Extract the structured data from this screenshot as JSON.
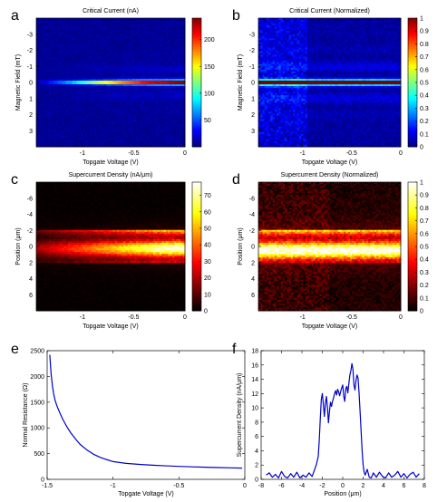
{
  "chart_data": [
    {
      "panel": "a",
      "type": "heatmap",
      "title": "Critical Current (nA)",
      "xlabel": "Topgate Voltage (V)",
      "ylabel": "Magnetic Field (mT)",
      "xlim": [
        -1.45,
        0
      ],
      "ylim": [
        -4,
        4
      ],
      "y_reversed": true,
      "xticks": [
        -1,
        -0.5,
        0
      ],
      "xticklabels": [
        "-1",
        "-0.5",
        "0"
      ],
      "yticks": [
        -3,
        -2,
        -1,
        0,
        1,
        2,
        3
      ],
      "yticklabels": [
        "-3",
        "-2",
        "-1",
        "0",
        "1",
        "2",
        "3"
      ],
      "colormap": "jet",
      "clim": [
        0,
        240
      ],
      "colorbar_ticks": [
        50,
        100,
        150,
        200
      ],
      "colorbar_ticklabels": [
        "50",
        "100",
        "150",
        "200"
      ],
      "peak_curve": {
        "x": [
          -1.45,
          -1.3,
          -1.1,
          -0.9,
          -0.7,
          -0.5,
          -0.3,
          0
        ],
        "y": [
          10,
          30,
          70,
          120,
          160,
          195,
          220,
          240
        ]
      }
    },
    {
      "panel": "b",
      "type": "heatmap",
      "title": "Critical Current (Normalized)",
      "xlabel": "Topgate Voltage (V)",
      "ylabel": "Magnetic Field (mT)",
      "xlim": [
        -1.45,
        0
      ],
      "ylim": [
        -4,
        4
      ],
      "y_reversed": true,
      "xticks": [
        -1,
        -0.5,
        0
      ],
      "xticklabels": [
        "-1",
        "-0.5",
        "0"
      ],
      "yticks": [
        -3,
        -2,
        -1,
        0,
        1,
        2,
        3
      ],
      "yticklabels": [
        "-3",
        "-2",
        "-1",
        "0",
        "1",
        "2",
        "3"
      ],
      "colormap": "jet",
      "clim": [
        0,
        1
      ],
      "colorbar_ticks": [
        0,
        0.1,
        0.2,
        0.3,
        0.4,
        0.5,
        0.6,
        0.7,
        0.8,
        0.9,
        1
      ],
      "colorbar_ticklabels": [
        "0",
        "0.1",
        "0.2",
        "0.3",
        "0.4",
        "0.5",
        "0.6",
        "0.7",
        "0.8",
        "0.9",
        "1"
      ]
    },
    {
      "panel": "c",
      "type": "heatmap",
      "title": "Supercurrent Density (nA/μm)",
      "xlabel": "Topgate Voltage (V)",
      "ylabel": "Position (μm)",
      "xlim": [
        -1.45,
        0
      ],
      "ylim": [
        -8,
        8
      ],
      "y_reversed": true,
      "xticks": [
        -1,
        -0.5,
        0
      ],
      "xticklabels": [
        "-1",
        "-0.5",
        "0"
      ],
      "yticks": [
        -6,
        -4,
        -2,
        0,
        2,
        4,
        6
      ],
      "yticklabels": [
        "-6",
        "-4",
        "-2",
        "0",
        "2",
        "4",
        "6"
      ],
      "colormap": "hot",
      "clim": [
        0,
        78
      ],
      "colorbar_ticks": [
        0,
        10,
        20,
        30,
        40,
        50,
        60,
        70
      ],
      "colorbar_ticklabels": [
        "0",
        "10",
        "20",
        "30",
        "40",
        "50",
        "60",
        "70"
      ],
      "band": [
        -2,
        2
      ]
    },
    {
      "panel": "d",
      "type": "heatmap",
      "title": "Supercurrent Density (Normalized)",
      "xlabel": "Topgate Voltage (V)",
      "ylabel": "Position (μm)",
      "xlim": [
        -1.45,
        0
      ],
      "ylim": [
        -8,
        8
      ],
      "y_reversed": true,
      "xticks": [
        -1,
        -0.5,
        0
      ],
      "xticklabels": [
        "-1",
        "-0.5",
        "0"
      ],
      "yticks": [
        -6,
        -4,
        -2,
        0,
        2,
        4,
        6
      ],
      "yticklabels": [
        "-6",
        "-4",
        "-2",
        "0",
        "2",
        "4",
        "6"
      ],
      "colormap": "hot",
      "clim": [
        0,
        1
      ],
      "colorbar_ticks": [
        0,
        0.1,
        0.2,
        0.3,
        0.4,
        0.5,
        0.6,
        0.7,
        0.8,
        0.9,
        1
      ],
      "colorbar_ticklabels": [
        "0",
        "0.1",
        "0.2",
        "0.3",
        "0.4",
        "0.5",
        "0.6",
        "0.7",
        "0.8",
        "0.9",
        "1"
      ],
      "band": [
        -2,
        2
      ]
    },
    {
      "panel": "e",
      "type": "line",
      "title": "",
      "xlabel": "Topgate Voltage (V)",
      "ylabel": "Normal Resistance (Ω)",
      "xlim": [
        -1.5,
        0
      ],
      "ylim": [
        0,
        2500
      ],
      "xticks": [
        -1.5,
        -1,
        -0.5,
        0
      ],
      "xticklabels": [
        "-1.5",
        "-1",
        "-0.5",
        "0"
      ],
      "yticks": [
        0,
        500,
        1000,
        1500,
        2000,
        2500
      ],
      "yticklabels": [
        "0",
        "500",
        "1000",
        "1500",
        "2000",
        "2500"
      ],
      "color": "#0000cc",
      "series": [
        {
          "x": [
            -1.48,
            -1.47,
            -1.46,
            -1.45,
            -1.44,
            -1.43,
            -1.42,
            -1.4,
            -1.38,
            -1.35,
            -1.32,
            -1.28,
            -1.25,
            -1.2,
            -1.15,
            -1.1,
            -1.05,
            -1.0,
            -0.9,
            -0.8,
            -0.7,
            -0.6,
            -0.5,
            -0.4,
            -0.3,
            -0.2,
            -0.1,
            -0.02
          ],
          "y": [
            2420,
            2050,
            1820,
            1650,
            1540,
            1460,
            1390,
            1270,
            1160,
            1020,
            900,
            770,
            680,
            575,
            490,
            430,
            385,
            345,
            310,
            290,
            275,
            263,
            252,
            243,
            236,
            229,
            223,
            218
          ]
        }
      ]
    },
    {
      "panel": "f",
      "type": "line",
      "title": "",
      "xlabel": "Position (μm)",
      "ylabel": "Supercurrent Density (nA/μm)",
      "xlim": [
        -8,
        8
      ],
      "ylim": [
        0,
        18
      ],
      "xticks": [
        -8,
        -6,
        -4,
        -2,
        0,
        2,
        4,
        6,
        8
      ],
      "xticklabels": [
        "-8",
        "-6",
        "-4",
        "-2",
        "0",
        "2",
        "4",
        "6",
        "8"
      ],
      "yticks": [
        0,
        2,
        4,
        6,
        8,
        10,
        12,
        14,
        16,
        18
      ],
      "yticklabels": [
        "0",
        "2",
        "4",
        "6",
        "8",
        "10",
        "12",
        "14",
        "16",
        "18"
      ],
      "color": "#0000cc",
      "series": [
        {
          "x": [
            -7.5,
            -7.2,
            -6.9,
            -6.6,
            -6.3,
            -6.0,
            -5.7,
            -5.4,
            -5.1,
            -4.8,
            -4.5,
            -4.2,
            -3.9,
            -3.6,
            -3.3,
            -3.0,
            -2.8,
            -2.6,
            -2.4,
            -2.3,
            -2.2,
            -2.1,
            -2.0,
            -1.9,
            -1.8,
            -1.7,
            -1.6,
            -1.5,
            -1.4,
            -1.3,
            -1.2,
            -1.1,
            -1.0,
            -0.9,
            -0.8,
            -0.7,
            -0.6,
            -0.5,
            -0.4,
            -0.3,
            -0.2,
            -0.1,
            0.0,
            0.1,
            0.2,
            0.3,
            0.4,
            0.5,
            0.6,
            0.7,
            0.8,
            0.9,
            1.0,
            1.1,
            1.2,
            1.3,
            1.4,
            1.5,
            1.6,
            1.7,
            1.8,
            1.9,
            2.0,
            2.1,
            2.2,
            2.4,
            2.6,
            2.8,
            3.0,
            3.3,
            3.6,
            3.9,
            4.2,
            4.5,
            4.8,
            5.1,
            5.4,
            5.7,
            6.0,
            6.3,
            6.6,
            6.9,
            7.2,
            7.5
          ],
          "y": [
            0.6,
            0.9,
            0.3,
            0.7,
            0.2,
            1.1,
            0.4,
            0.2,
            0.8,
            0.3,
            1.0,
            0.2,
            0.6,
            0.3,
            0.9,
            0.4,
            1.2,
            2.0,
            3.2,
            5.5,
            8.5,
            11.2,
            12.0,
            10.5,
            8.8,
            10.6,
            11.6,
            10.1,
            7.9,
            9.5,
            10.8,
            10.2,
            10.9,
            11.4,
            12.0,
            12.4,
            11.8,
            12.6,
            12.2,
            11.7,
            12.3,
            12.8,
            13.2,
            11.6,
            10.9,
            12.7,
            13.0,
            12.1,
            13.4,
            14.6,
            15.2,
            16.2,
            15.4,
            13.2,
            12.5,
            13.8,
            14.6,
            14.2,
            12.1,
            9.5,
            6.8,
            4.0,
            2.0,
            1.0,
            0.6,
            1.4,
            0.3,
            0.2,
            0.9,
            0.3,
            1.0,
            0.4,
            0.2,
            0.9,
            0.3,
            0.6,
            1.1,
            0.3,
            0.8,
            0.2,
            0.7,
            1.0,
            0.3,
            0.8
          ]
        }
      ]
    }
  ]
}
